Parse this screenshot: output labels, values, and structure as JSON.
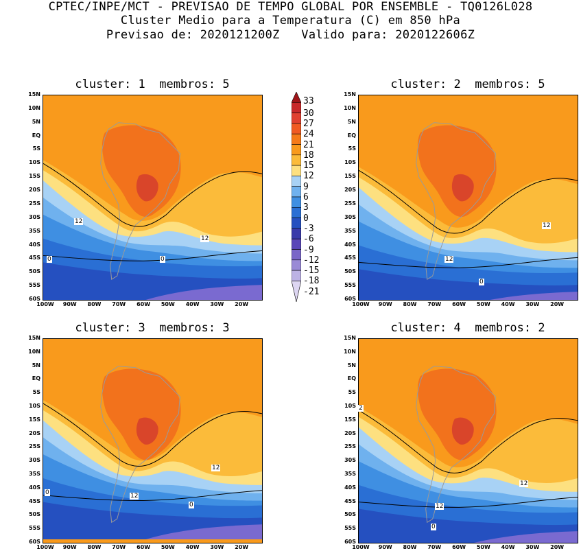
{
  "header": {
    "line1": "CPTEC/INPE/MCT - PREVISAO DE TEMPO GLOBAL POR ENSEMBLE - TQ0126L028",
    "line2": "Cluster Medio para a Temperatura (C) em 850 hPa",
    "line3": "Previsao de: 2020121200Z   Valido para: 2020122606Z"
  },
  "panels": [
    {
      "title": "cluster: 1  membros: 5",
      "contour_labels": [
        "12",
        "12",
        "0",
        "0"
      ]
    },
    {
      "title": "cluster: 2  membros: 5",
      "contour_labels": [
        "12",
        "12",
        "0"
      ]
    },
    {
      "title": "cluster: 3  membros: 3",
      "contour_labels": [
        "12",
        "12",
        "0",
        "0"
      ]
    },
    {
      "title": "cluster: 4  membros: 2",
      "contour_labels": [
        "2",
        "12",
        "12",
        "0"
      ]
    }
  ],
  "lat_labels": [
    "15N",
    "10N",
    "5N",
    "EQ",
    "5S",
    "10S",
    "15S",
    "20S",
    "25S",
    "30S",
    "35S",
    "40S",
    "45S",
    "50S",
    "55S",
    "60S"
  ],
  "lon_labels": [
    "100W",
    "90W",
    "80W",
    "70W",
    "60W",
    "50W",
    "40W",
    "30W",
    "20W"
  ],
  "colorbar": {
    "labels": [
      "33",
      "30",
      "27",
      "24",
      "21",
      "18",
      "15",
      "12",
      "9",
      "6",
      "3",
      "0",
      "-3",
      "-6",
      "-9",
      "-12",
      "-15",
      "-18",
      "-21"
    ],
    "colors": [
      "#a01418",
      "#c8282a",
      "#e04030",
      "#f05a22",
      "#f57a18",
      "#f99a1c",
      "#fbbb3a",
      "#fde080",
      "#a8d2f5",
      "#6fb1ee",
      "#3f8fe2",
      "#2a6fd4",
      "#2550c0",
      "#3a3aaa",
      "#5a46b8",
      "#7a66c8",
      "#9a8ad6",
      "#bcb2e4",
      "#ddd6f2"
    ]
  }
}
